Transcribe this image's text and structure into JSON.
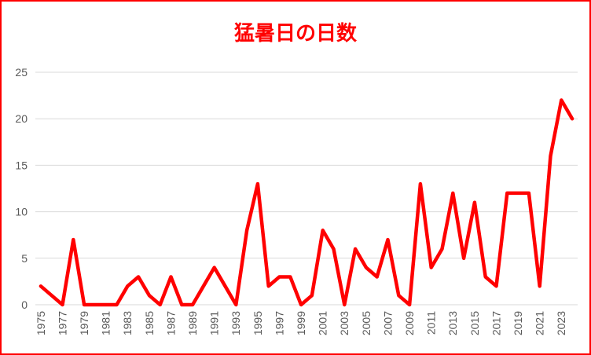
{
  "chart_data": {
    "type": "line",
    "title": "猛暑日の日数",
    "xlabel": "",
    "ylabel": "",
    "x": [
      1975,
      1976,
      1977,
      1978,
      1979,
      1980,
      1981,
      1982,
      1983,
      1984,
      1985,
      1986,
      1987,
      1988,
      1989,
      1990,
      1991,
      1992,
      1993,
      1994,
      1995,
      1996,
      1997,
      1998,
      1999,
      2000,
      2001,
      2002,
      2003,
      2004,
      2005,
      2006,
      2007,
      2008,
      2009,
      2010,
      2011,
      2012,
      2013,
      2014,
      2015,
      2016,
      2017,
      2018,
      2019,
      2020,
      2021,
      2022,
      2023,
      2024
    ],
    "series": [
      {
        "values": [
          2,
          1,
          0,
          7,
          0,
          0,
          0,
          0,
          2,
          3,
          1,
          0,
          3,
          0,
          0,
          2,
          4,
          2,
          0,
          8,
          13,
          2,
          3,
          3,
          0,
          1,
          8,
          6,
          0,
          6,
          4,
          3,
          7,
          1,
          0,
          13,
          4,
          6,
          12,
          5,
          11,
          3,
          2,
          12,
          12,
          12,
          2,
          16,
          22,
          20
        ]
      }
    ],
    "x_tick_labels": [
      "1975",
      "1977",
      "1979",
      "1981",
      "1983",
      "1985",
      "1987",
      "1989",
      "1991",
      "1993",
      "1995",
      "1997",
      "1999",
      "2001",
      "2003",
      "2005",
      "2007",
      "2009",
      "2011",
      "2013",
      "2015",
      "2017",
      "2019",
      "2021",
      "2023"
    ],
    "y_ticks": [
      "0",
      "5",
      "10",
      "15",
      "20",
      "25"
    ],
    "ylim": [
      0,
      25
    ],
    "grid": true,
    "legend": "none",
    "colors": {
      "line": "#ff0000",
      "title": "#ff0000",
      "border": "#ff0000",
      "grid": "#d9d9d9"
    }
  }
}
